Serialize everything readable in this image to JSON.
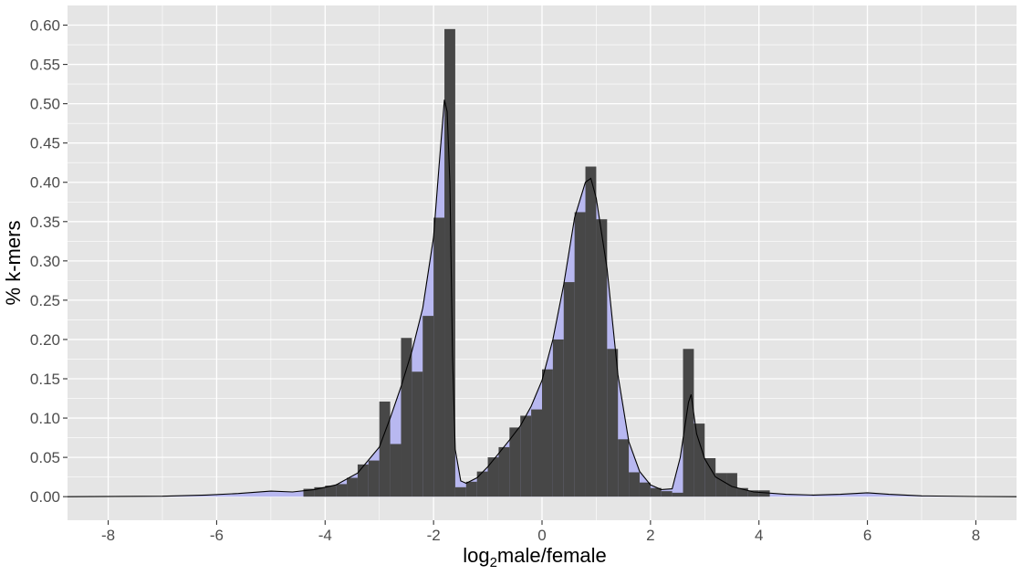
{
  "chart_data": {
    "type": "bar",
    "xlabel_parts": {
      "base": "log",
      "subscript": "2",
      "rest": "male/female"
    },
    "ylabel": "% k-mers",
    "xlim": [
      -8.75,
      8.75
    ],
    "ylim": [
      -0.03,
      0.625
    ],
    "x_ticks": [
      -8,
      -6,
      -4,
      -2,
      0,
      2,
      4,
      6,
      8
    ],
    "y_ticks": [
      0.0,
      0.05,
      0.1,
      0.15,
      0.2,
      0.25,
      0.3,
      0.35,
      0.4,
      0.45,
      0.5,
      0.55,
      0.6
    ],
    "x_tick_labels": [
      "-8",
      "-6",
      "-4",
      "-2",
      "0",
      "2",
      "4",
      "6",
      "8"
    ],
    "y_tick_labels": [
      "0.00",
      "0.05",
      "0.10",
      "0.15",
      "0.20",
      "0.25",
      "0.30",
      "0.35",
      "0.40",
      "0.45",
      "0.50",
      "0.55",
      "0.60"
    ],
    "grid": true,
    "colors": {
      "panel": "#e5e5e5",
      "grid": "#ffffff",
      "bars": "#474747",
      "density_fill": "#b8b8f0",
      "density_line": "#000000"
    },
    "bin_width": 0.2,
    "bars": [
      {
        "x": -4.3,
        "y": 0.01
      },
      {
        "x": -4.1,
        "y": 0.012
      },
      {
        "x": -3.9,
        "y": 0.014
      },
      {
        "x": -3.7,
        "y": 0.016
      },
      {
        "x": -3.5,
        "y": 0.024
      },
      {
        "x": -3.3,
        "y": 0.041
      },
      {
        "x": -3.1,
        "y": 0.046
      },
      {
        "x": -2.9,
        "y": 0.121
      },
      {
        "x": -2.7,
        "y": 0.067
      },
      {
        "x": -2.5,
        "y": 0.202
      },
      {
        "x": -2.3,
        "y": 0.159
      },
      {
        "x": -2.1,
        "y": 0.23
      },
      {
        "x": -1.9,
        "y": 0.355
      },
      {
        "x": -1.7,
        "y": 0.595
      },
      {
        "x": -1.5,
        "y": 0.012
      },
      {
        "x": -1.3,
        "y": 0.019
      },
      {
        "x": -1.1,
        "y": 0.032
      },
      {
        "x": -0.9,
        "y": 0.05
      },
      {
        "x": -0.7,
        "y": 0.063
      },
      {
        "x": -0.5,
        "y": 0.088
      },
      {
        "x": -0.3,
        "y": 0.103
      },
      {
        "x": -0.1,
        "y": 0.111
      },
      {
        "x": 0.1,
        "y": 0.162
      },
      {
        "x": 0.3,
        "y": 0.2
      },
      {
        "x": 0.5,
        "y": 0.273
      },
      {
        "x": 0.7,
        "y": 0.362
      },
      {
        "x": 0.9,
        "y": 0.42
      },
      {
        "x": 1.1,
        "y": 0.353
      },
      {
        "x": 1.3,
        "y": 0.188
      },
      {
        "x": 1.5,
        "y": 0.073
      },
      {
        "x": 1.7,
        "y": 0.031
      },
      {
        "x": 1.9,
        "y": 0.018
      },
      {
        "x": 2.1,
        "y": 0.011
      },
      {
        "x": 2.3,
        "y": 0.007
      },
      {
        "x": 2.5,
        "y": 0.005
      },
      {
        "x": 2.7,
        "y": 0.188
      },
      {
        "x": 2.9,
        "y": 0.093
      },
      {
        "x": 3.1,
        "y": 0.049
      },
      {
        "x": 3.3,
        "y": 0.03
      },
      {
        "x": 3.5,
        "y": 0.03
      },
      {
        "x": 3.7,
        "y": 0.011
      },
      {
        "x": 3.9,
        "y": 0.008
      },
      {
        "x": 4.1,
        "y": 0.008
      }
    ],
    "density": [
      [
        -8.75,
        0.0
      ],
      [
        -7.0,
        0.0005
      ],
      [
        -6.2,
        0.002
      ],
      [
        -5.6,
        0.004
      ],
      [
        -5.0,
        0.007
      ],
      [
        -4.6,
        0.006
      ],
      [
        -4.2,
        0.009
      ],
      [
        -3.8,
        0.015
      ],
      [
        -3.4,
        0.03
      ],
      [
        -3.0,
        0.063
      ],
      [
        -2.8,
        0.1
      ],
      [
        -2.6,
        0.14
      ],
      [
        -2.4,
        0.185
      ],
      [
        -2.2,
        0.24
      ],
      [
        -2.0,
        0.33
      ],
      [
        -1.9,
        0.42
      ],
      [
        -1.8,
        0.505
      ],
      [
        -1.75,
        0.49
      ],
      [
        -1.7,
        0.4
      ],
      [
        -1.65,
        0.18
      ],
      [
        -1.6,
        0.06
      ],
      [
        -1.5,
        0.02
      ],
      [
        -1.4,
        0.017
      ],
      [
        -1.2,
        0.024
      ],
      [
        -1.0,
        0.038
      ],
      [
        -0.8,
        0.055
      ],
      [
        -0.6,
        0.072
      ],
      [
        -0.4,
        0.09
      ],
      [
        -0.2,
        0.115
      ],
      [
        0.0,
        0.148
      ],
      [
        0.2,
        0.2
      ],
      [
        0.4,
        0.27
      ],
      [
        0.6,
        0.355
      ],
      [
        0.8,
        0.4
      ],
      [
        0.9,
        0.405
      ],
      [
        1.0,
        0.38
      ],
      [
        1.2,
        0.29
      ],
      [
        1.4,
        0.155
      ],
      [
        1.6,
        0.07
      ],
      [
        1.8,
        0.032
      ],
      [
        2.0,
        0.015
      ],
      [
        2.2,
        0.009
      ],
      [
        2.4,
        0.01
      ],
      [
        2.55,
        0.05
      ],
      [
        2.7,
        0.12
      ],
      [
        2.75,
        0.13
      ],
      [
        2.85,
        0.08
      ],
      [
        3.0,
        0.048
      ],
      [
        3.2,
        0.025
      ],
      [
        3.5,
        0.013
      ],
      [
        3.9,
        0.006
      ],
      [
        4.5,
        0.003
      ],
      [
        5.0,
        0.002
      ],
      [
        5.5,
        0.003
      ],
      [
        6.0,
        0.005
      ],
      [
        6.4,
        0.003
      ],
      [
        7.0,
        0.001
      ],
      [
        8.0,
        0.0002
      ],
      [
        8.75,
        0.0
      ]
    ]
  }
}
